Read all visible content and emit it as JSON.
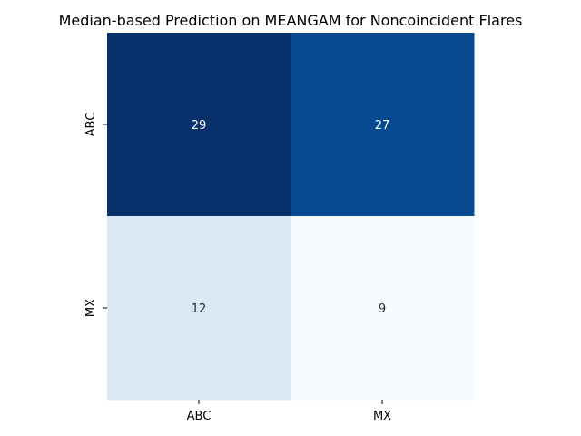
{
  "chart_data": {
    "type": "heatmap",
    "title": "Median-based Prediction on MEANGAM for Noncoincident Flares",
    "xlabel": "",
    "ylabel": "",
    "x_categories": [
      "ABC",
      "MX"
    ],
    "y_categories": [
      "ABC",
      "MX"
    ],
    "values": [
      [
        29,
        27
      ],
      [
        12,
        9
      ]
    ],
    "colormap": "Blues",
    "vmin": 9,
    "vmax": 29,
    "colorbar": false,
    "grid": false
  }
}
